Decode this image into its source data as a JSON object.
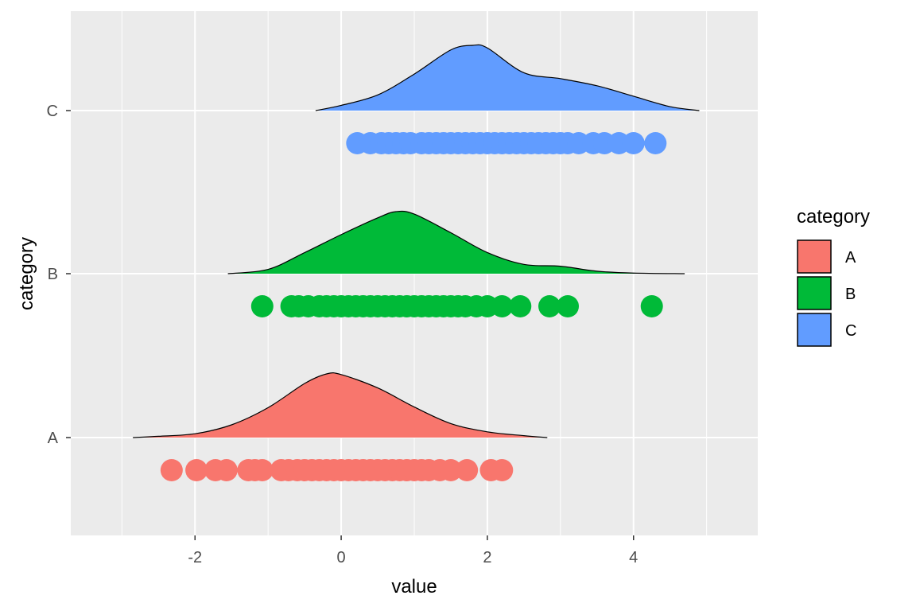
{
  "chart_data": {
    "type": "ridgeline_density_with_points",
    "xlabel": "value",
    "ylabel": "category",
    "xlim": [
      -3.7,
      5.7
    ],
    "x_ticks": [
      -2,
      0,
      2,
      4
    ],
    "x_tick_labels": [
      "-2",
      "0",
      "2",
      "4"
    ],
    "categories": [
      "A",
      "B",
      "C"
    ],
    "grid": true,
    "panel_background": "#ebebeb",
    "legend": {
      "title": "category",
      "position": "right",
      "entries": [
        "A",
        "B",
        "C"
      ]
    },
    "series": [
      {
        "name": "A",
        "color": "#f8766d",
        "density_profile": [
          [
            -2.85,
            0.0
          ],
          [
            -2.5,
            0.02
          ],
          [
            -2.0,
            0.06
          ],
          [
            -1.5,
            0.2
          ],
          [
            -1.0,
            0.47
          ],
          [
            -0.5,
            0.85
          ],
          [
            -0.2,
            1.0
          ],
          [
            0.0,
            0.99
          ],
          [
            0.5,
            0.78
          ],
          [
            1.0,
            0.48
          ],
          [
            1.5,
            0.22
          ],
          [
            2.0,
            0.09
          ],
          [
            2.5,
            0.03
          ],
          [
            2.82,
            0.0
          ]
        ],
        "points": [
          -2.32,
          -1.98,
          -1.72,
          -1.57,
          -1.27,
          -1.18,
          -1.08,
          -0.82,
          -0.72,
          -0.6,
          -0.5,
          -0.4,
          -0.3,
          -0.2,
          -0.1,
          0.0,
          0.1,
          0.2,
          0.3,
          0.4,
          0.5,
          0.6,
          0.7,
          0.8,
          0.9,
          1.0,
          1.1,
          1.2,
          1.35,
          1.5,
          1.72,
          2.05,
          2.2
        ]
      },
      {
        "name": "B",
        "color": "#00ba38",
        "density_profile": [
          [
            -1.55,
            0.0
          ],
          [
            -1.0,
            0.07
          ],
          [
            -0.5,
            0.34
          ],
          [
            0.0,
            0.63
          ],
          [
            0.5,
            0.9
          ],
          [
            0.75,
            1.0
          ],
          [
            1.0,
            0.96
          ],
          [
            1.5,
            0.66
          ],
          [
            2.0,
            0.34
          ],
          [
            2.5,
            0.15
          ],
          [
            3.0,
            0.12
          ],
          [
            3.5,
            0.04
          ],
          [
            4.0,
            0.01
          ],
          [
            4.7,
            0.0
          ]
        ],
        "points": [
          -1.08,
          -0.68,
          -0.58,
          -0.45,
          -0.3,
          -0.2,
          -0.1,
          0.0,
          0.1,
          0.2,
          0.3,
          0.4,
          0.5,
          0.6,
          0.7,
          0.8,
          0.9,
          1.0,
          1.1,
          1.2,
          1.3,
          1.4,
          1.5,
          1.6,
          1.7,
          1.85,
          2.0,
          2.2,
          2.45,
          2.85,
          3.1,
          4.25
        ]
      },
      {
        "name": "C",
        "color": "#619cff",
        "density_profile": [
          [
            -0.35,
            0.0
          ],
          [
            0.0,
            0.08
          ],
          [
            0.5,
            0.24
          ],
          [
            1.0,
            0.56
          ],
          [
            1.5,
            0.93
          ],
          [
            1.8,
            1.0
          ],
          [
            2.0,
            0.96
          ],
          [
            2.5,
            0.58
          ],
          [
            3.0,
            0.49
          ],
          [
            3.5,
            0.38
          ],
          [
            4.0,
            0.22
          ],
          [
            4.5,
            0.06
          ],
          [
            4.9,
            0.0
          ]
        ],
        "points": [
          0.22,
          0.4,
          0.55,
          0.65,
          0.75,
          0.85,
          0.95,
          1.1,
          1.2,
          1.3,
          1.4,
          1.5,
          1.6,
          1.7,
          1.8,
          1.9,
          2.0,
          2.1,
          2.2,
          2.3,
          2.4,
          2.5,
          2.6,
          2.7,
          2.8,
          2.9,
          3.0,
          3.1,
          3.25,
          3.45,
          3.6,
          3.8,
          4.0,
          4.3
        ]
      }
    ]
  }
}
